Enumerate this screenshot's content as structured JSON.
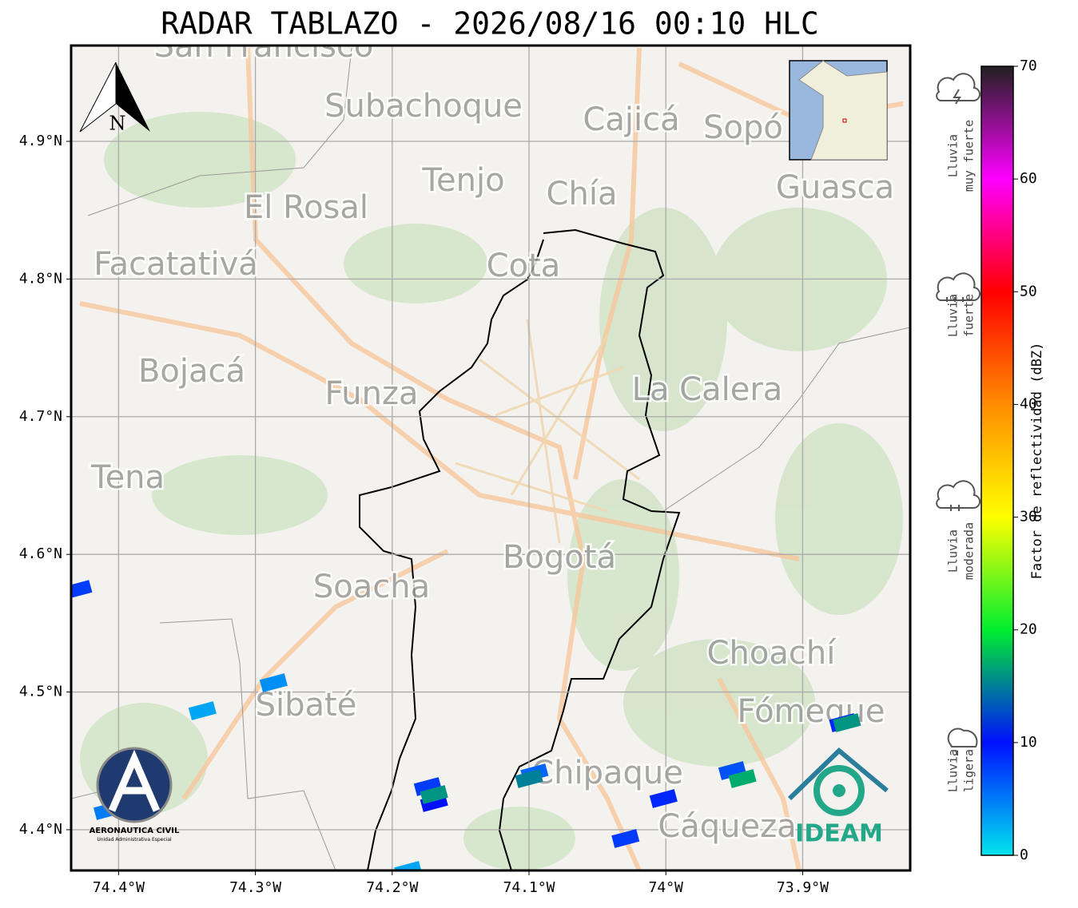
{
  "title": "RADAR TABLAZO - 2026/08/16 00:10 HLC",
  "map": {
    "xlim": [
      -74.4347,
      -73.8214
    ],
    "ylim": [
      4.3704,
      4.9696
    ],
    "xticks": [
      {
        "value": -74.4,
        "label": "74.4°W"
      },
      {
        "value": -74.3,
        "label": "74.3°W"
      },
      {
        "value": -74.2,
        "label": "74.2°W"
      },
      {
        "value": -74.1,
        "label": "74.1°W"
      },
      {
        "value": -74.0,
        "label": "74°W"
      },
      {
        "value": -73.9,
        "label": "73.9°W"
      }
    ],
    "yticks": [
      {
        "value": 4.4,
        "label": "4.4°N"
      },
      {
        "value": 4.5,
        "label": "4.5°N"
      },
      {
        "value": 4.6,
        "label": "4.6°N"
      },
      {
        "value": 4.7,
        "label": "4.7°N"
      },
      {
        "value": 4.8,
        "label": "4.8°N"
      },
      {
        "value": 4.9,
        "label": "4.9°N"
      }
    ],
    "grid": true,
    "places": [
      "San Francisco",
      "Subachoque",
      "Cajicá",
      "Sopó",
      "Tenjo",
      "Chía",
      "Guasca",
      "El Rosal",
      "Facatativá",
      "Cota",
      "Bojacá",
      "Funza",
      "La Calera",
      "Tena",
      "Bogotá",
      "Soacha",
      "Choachí",
      "Sibaté",
      "Fómeque",
      "Chipaque",
      "Cáqueza"
    ],
    "echoes": [
      {
        "lon": -74.4295,
        "lat": 4.5745,
        "dbz": 8
      },
      {
        "lon": -74.3387,
        "lat": 4.4864,
        "dbz": 3
      },
      {
        "lon": -74.2867,
        "lat": 4.5067,
        "dbz": 4
      },
      {
        "lon": -74.174,
        "lat": 4.4313,
        "dbz": 8
      },
      {
        "lon": -74.1694,
        "lat": 4.4197,
        "dbz": 10
      },
      {
        "lon": -74.1694,
        "lat": 4.4255,
        "dbz": 16
      },
      {
        "lon": -74.096,
        "lat": 4.4412,
        "dbz": 6
      },
      {
        "lon": -74.1,
        "lat": 4.4371,
        "dbz": 15
      },
      {
        "lon": -74.0295,
        "lat": 4.3936,
        "dbz": 8
      },
      {
        "lon": -74.0017,
        "lat": 4.4226,
        "dbz": 9
      },
      {
        "lon": -73.9514,
        "lat": 4.4429,
        "dbz": 7
      },
      {
        "lon": -73.944,
        "lat": 4.4371,
        "dbz": 17
      },
      {
        "lon": -73.8705,
        "lat": 4.4777,
        "dbz": 9
      },
      {
        "lon": -73.8676,
        "lat": 4.4777,
        "dbz": 16
      },
      {
        "lon": -74.4081,
        "lat": 4.4139,
        "dbz": 5
      },
      {
        "lon": -74.1884,
        "lat": 4.3704,
        "dbz": 3
      }
    ]
  },
  "colorbar": {
    "label": "Factor de reflectividad (dBZ)",
    "lim": [
      0,
      70
    ],
    "ticks": [
      0,
      10,
      20,
      30,
      40,
      50,
      60,
      70
    ],
    "colors": [
      "#00e5ee",
      "#0010ff",
      "#00ee30",
      "#ffff00",
      "#ff8c00",
      "#ff0000",
      "#ff00ff",
      "#202020"
    ]
  },
  "legend": [
    [
      "Lluvia",
      "muy fuerte"
    ],
    [
      "Lluvia",
      "fuerte"
    ],
    [
      "Lluvia",
      "moderada"
    ],
    [
      "Lluvia",
      "ligera"
    ]
  ],
  "north": "N",
  "logos": {
    "aero": "AERONAUTICA CIVIL",
    "aero_sub": "Unidad Administrativa Especial",
    "ideam": "IDEAM"
  }
}
